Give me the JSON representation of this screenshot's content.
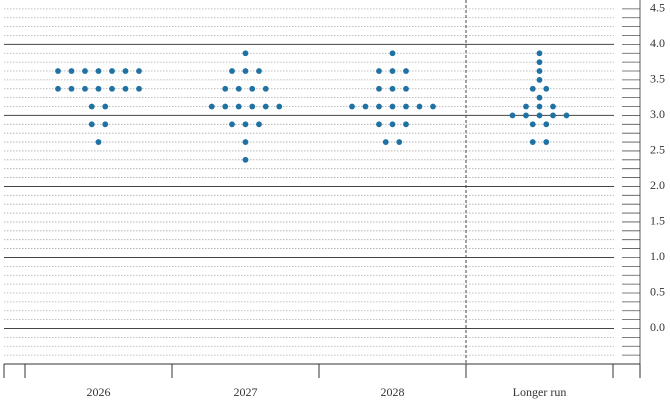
{
  "chart_data": {
    "type": "dot",
    "categories": [
      "2026",
      "2027",
      "2028",
      "Longer run"
    ],
    "values": [
      [
        3.625,
        3.625,
        3.625,
        3.625,
        3.625,
        3.625,
        3.625,
        3.375,
        3.375,
        3.375,
        3.375,
        3.375,
        3.375,
        3.375,
        3.125,
        3.125,
        2.875,
        2.875,
        2.625
      ],
      [
        3.875,
        3.625,
        3.625,
        3.625,
        3.375,
        3.375,
        3.375,
        3.375,
        3.125,
        3.125,
        3.125,
        3.125,
        3.125,
        3.125,
        2.875,
        2.875,
        2.875,
        2.625,
        2.375
      ],
      [
        3.875,
        3.625,
        3.625,
        3.625,
        3.375,
        3.375,
        3.375,
        3.125,
        3.125,
        3.125,
        3.125,
        3.125,
        3.125,
        3.125,
        2.875,
        2.875,
        2.875,
        2.625,
        2.625
      ],
      [
        3.875,
        3.75,
        3.625,
        3.5,
        3.375,
        3.375,
        3.25,
        3.125,
        3.125,
        3.125,
        3,
        3,
        3,
        3,
        3,
        2.875,
        2.875,
        2.625,
        2.625
      ]
    ],
    "color": "#1f72a3",
    "ylim": [
      -0.5,
      4.625
    ],
    "yticks": [
      {
        "value": 0,
        "label": "0.0"
      },
      0.5,
      {
        "value": 1,
        "label": "1.0"
      },
      1.5,
      {
        "value": 2,
        "label": "2.0"
      },
      2.5,
      {
        "value": 3,
        "label": "3.0"
      },
      3.5,
      {
        "value": 4,
        "label": "4.0"
      },
      4.5
    ],
    "yminorticks": [
      -0.375,
      -0.25,
      -0.125,
      0.125,
      0.25,
      0.375,
      0.625,
      0.75,
      0.875,
      1.125,
      1.25,
      1.375,
      1.625,
      1.75,
      1.875,
      2.125,
      2.25,
      2.375,
      2.625,
      2.75,
      2.875,
      3.125,
      3.25,
      3.375,
      3.625,
      3.75,
      3.875,
      4.125,
      4.25,
      4.375
    ],
    "grid": true
  }
}
